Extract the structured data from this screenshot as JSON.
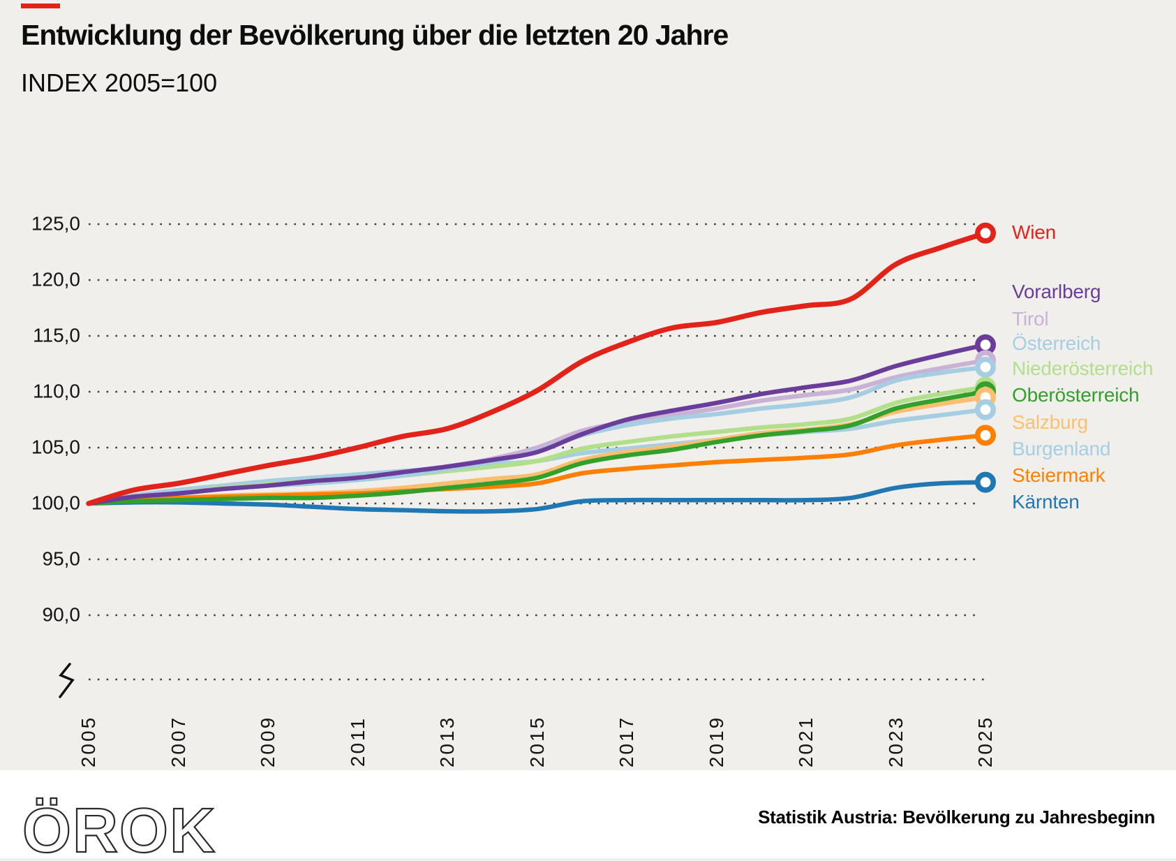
{
  "header": {
    "title": "Entwicklung der Bevölkerung über die letzten 20 Jahre",
    "subtitle": "INDEX 2005=100"
  },
  "accent_color": "#e2231a",
  "chart_data": {
    "type": "line",
    "title": "Entwicklung der Bevölkerung über die letzten 20 Jahre",
    "subtitle": "INDEX 2005=100",
    "grid": "dotted-horizontal",
    "legend_position": "right",
    "axis_break_at_bottom": true,
    "x": [
      2005,
      2006,
      2007,
      2008,
      2009,
      2010,
      2011,
      2012,
      2013,
      2014,
      2015,
      2016,
      2017,
      2018,
      2019,
      2020,
      2021,
      2022,
      2023,
      2024,
      2025
    ],
    "x_tick_labels": [
      "2005",
      "2007",
      "2009",
      "2011",
      "2013",
      "2015",
      "2017",
      "2019",
      "2021",
      "2023",
      "2025"
    ],
    "x_tick_years": [
      2005,
      2007,
      2009,
      2011,
      2013,
      2015,
      2017,
      2019,
      2021,
      2023,
      2025
    ],
    "y_tick_labels": [
      "125,0",
      "120,0",
      "115,0",
      "110,0",
      "105,0",
      "100,0",
      "95,0",
      "90,0"
    ],
    "y_tick_values": [
      125,
      120,
      115,
      110,
      105,
      100,
      95,
      90
    ],
    "ylim": [
      88,
      126.5
    ],
    "series": [
      {
        "id": "wien",
        "label": "Wien",
        "color": "#e2231a",
        "values": [
          100,
          101.2,
          101.8,
          102.6,
          103.4,
          104.1,
          105,
          106,
          106.7,
          108.2,
          110.1,
          112.7,
          114.4,
          115.7,
          116.2,
          117.1,
          117.7,
          118.3,
          121.4,
          122.9,
          124.2
        ]
      },
      {
        "id": "vorarlberg",
        "label": "Vorarlberg",
        "color": "#6a3d9a",
        "values": [
          100,
          100.6,
          100.9,
          101.3,
          101.6,
          102,
          102.3,
          102.8,
          103.3,
          103.9,
          104.6,
          106.2,
          107.5,
          108.3,
          109,
          109.8,
          110.4,
          111,
          112.3,
          113.3,
          114.2
        ]
      },
      {
        "id": "tirol",
        "label": "Tirol",
        "color": "#cab2d6",
        "values": [
          100,
          100.5,
          100.9,
          101.3,
          101.6,
          101.8,
          102.2,
          102.7,
          103.3,
          104,
          105,
          106.5,
          107.3,
          107.9,
          108.5,
          109.2,
          109.7,
          110.2,
          111.3,
          112.1,
          112.8
        ]
      },
      {
        "id": "oesterreich",
        "label": "Österreich",
        "color": "#a6cee3",
        "values": [
          100,
          100.6,
          101,
          101.3,
          101.6,
          101.8,
          102.1,
          102.5,
          103.1,
          103.7,
          104.7,
          106.1,
          107,
          107.6,
          108,
          108.5,
          108.9,
          109.5,
          111,
          111.7,
          112.2
        ]
      },
      {
        "id": "niederoesterreich",
        "label": "Niederösterreich",
        "color": "#b2df8a",
        "values": [
          100,
          100.6,
          101,
          101.4,
          101.7,
          102,
          102.2,
          102.5,
          102.9,
          103.3,
          103.8,
          104.9,
          105.5,
          106,
          106.4,
          106.8,
          107.1,
          107.6,
          109,
          109.8,
          110.4
        ]
      },
      {
        "id": "oberoesterreich",
        "label": "Oberösterreich",
        "color": "#33a02c",
        "values": [
          100,
          100.2,
          100.3,
          100.4,
          100.5,
          100.5,
          100.7,
          101,
          101.4,
          101.8,
          102.3,
          103.6,
          104.3,
          104.8,
          105.5,
          106.1,
          106.5,
          107,
          108.5,
          109.3,
          110
        ]
      },
      {
        "id": "salzburg",
        "label": "Salzburg",
        "color": "#fdbf6f",
        "values": [
          100,
          100.3,
          100.5,
          100.7,
          100.8,
          100.9,
          101.1,
          101.4,
          101.8,
          102.2,
          102.6,
          103.9,
          104.6,
          105.1,
          105.7,
          106.3,
          106.6,
          107.1,
          108.2,
          108.9,
          109.5
        ]
      },
      {
        "id": "burgenland",
        "label": "Burgenland",
        "color": "#a6cee3",
        "values": [
          100,
          100.7,
          101.2,
          101.6,
          102,
          102.3,
          102.6,
          102.9,
          103.2,
          103.5,
          103.8,
          104.5,
          104.9,
          105.3,
          105.7,
          106.1,
          106.4,
          106.7,
          107.4,
          107.9,
          108.4
        ]
      },
      {
        "id": "steiermark",
        "label": "Steiermark",
        "color": "#ff7f00",
        "values": [
          100,
          100.3,
          100.5,
          100.6,
          100.7,
          100.8,
          100.9,
          101.1,
          101.3,
          101.5,
          101.8,
          102.7,
          103.1,
          103.4,
          103.7,
          103.9,
          104.1,
          104.4,
          105.2,
          105.7,
          106.1
        ]
      },
      {
        "id": "kaernten",
        "label": "Kärnten",
        "color": "#1f78b4",
        "values": [
          100,
          100.1,
          100.1,
          100,
          99.9,
          99.7,
          99.5,
          99.4,
          99.3,
          99.3,
          99.5,
          100.2,
          100.3,
          100.3,
          100.3,
          100.3,
          100.3,
          100.5,
          101.4,
          101.8,
          101.9
        ]
      }
    ]
  },
  "footer": {
    "logo": "ÖROK",
    "source": "Statistik Austria: Bevölkerung zu Jahresbeginn"
  }
}
